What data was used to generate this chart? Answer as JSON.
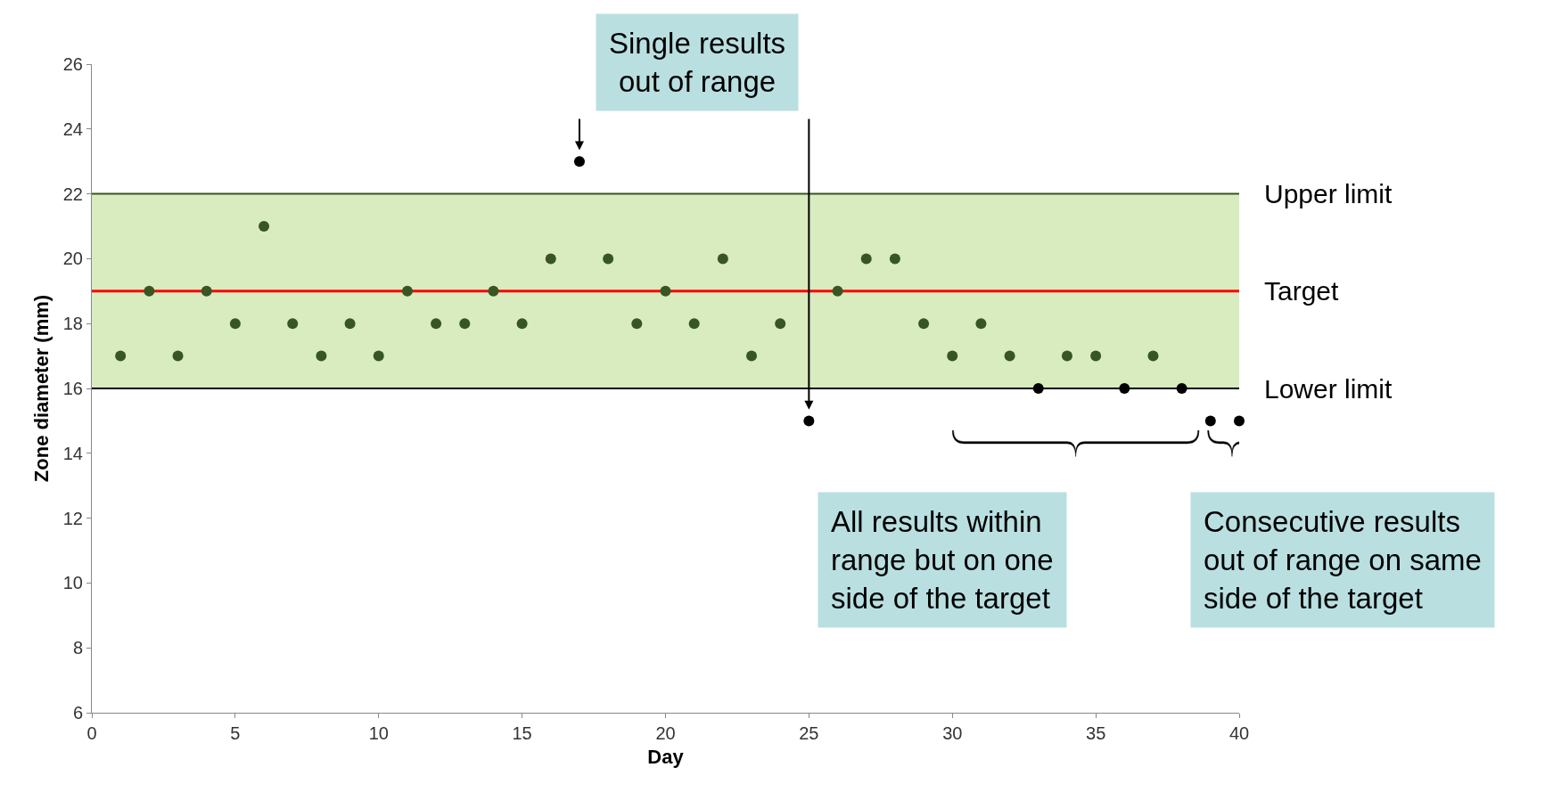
{
  "chart_data": {
    "type": "scatter",
    "xlabel": "Day",
    "ylabel": "Zone diameter (mm)",
    "x": [
      1,
      2,
      3,
      4,
      5,
      6,
      7,
      8,
      9,
      10,
      11,
      12,
      13,
      14,
      15,
      16,
      17,
      18,
      19,
      20,
      21,
      22,
      23,
      24,
      25,
      26,
      27,
      28,
      29,
      30,
      31,
      32,
      33,
      34,
      35,
      36,
      37,
      38,
      39,
      40
    ],
    "values": [
      17,
      19,
      17,
      19,
      18,
      21,
      18,
      17,
      18,
      17,
      19,
      18,
      18,
      19,
      18,
      20,
      23,
      20,
      18,
      19,
      18,
      20,
      17,
      18,
      15,
      19,
      20,
      20,
      18,
      17,
      18,
      17,
      16,
      17,
      17,
      16,
      17,
      16,
      15,
      15
    ],
    "colors": [
      "#375623",
      "#375623",
      "#375623",
      "#375623",
      "#375623",
      "#375623",
      "#375623",
      "#375623",
      "#375623",
      "#375623",
      "#375623",
      "#375623",
      "#375623",
      "#375623",
      "#375623",
      "#375623",
      "#000000",
      "#375623",
      "#375623",
      "#375623",
      "#375623",
      "#375623",
      "#375623",
      "#375623",
      "#000000",
      "#375623",
      "#375623",
      "#375623",
      "#375623",
      "#375623",
      "#375623",
      "#375623",
      "#000000",
      "#375623",
      "#375623",
      "#000000",
      "#375623",
      "#000000",
      "#000000",
      "#000000"
    ],
    "marker": "circle",
    "xlim": [
      0,
      40
    ],
    "xticks": [
      0,
      5,
      10,
      15,
      20,
      25,
      30,
      35,
      40
    ],
    "ylim": [
      6,
      26
    ],
    "yticks": [
      6,
      8,
      10,
      12,
      14,
      16,
      18,
      20,
      22,
      24,
      26
    ],
    "grid": false,
    "legend": false,
    "bands": [
      {
        "axis": "y",
        "from": 16,
        "to": 22,
        "color": "#d8ecc0"
      }
    ],
    "ref_lines": [
      {
        "axis": "y",
        "value": 22,
        "label": "Upper limit",
        "color": "#375623"
      },
      {
        "axis": "y",
        "value": 19,
        "label": "Target",
        "color": "#ff0000"
      },
      {
        "axis": "y",
        "value": 16,
        "label": "Lower limit",
        "color": "#000000"
      }
    ],
    "annotations": [
      {
        "text": "Single results\nout of range",
        "x": 17,
        "y": 23
      },
      "All results within\nrange but on one\nside of the target",
      "Consecutive results\nout of range on same\nside of the target"
    ]
  }
}
